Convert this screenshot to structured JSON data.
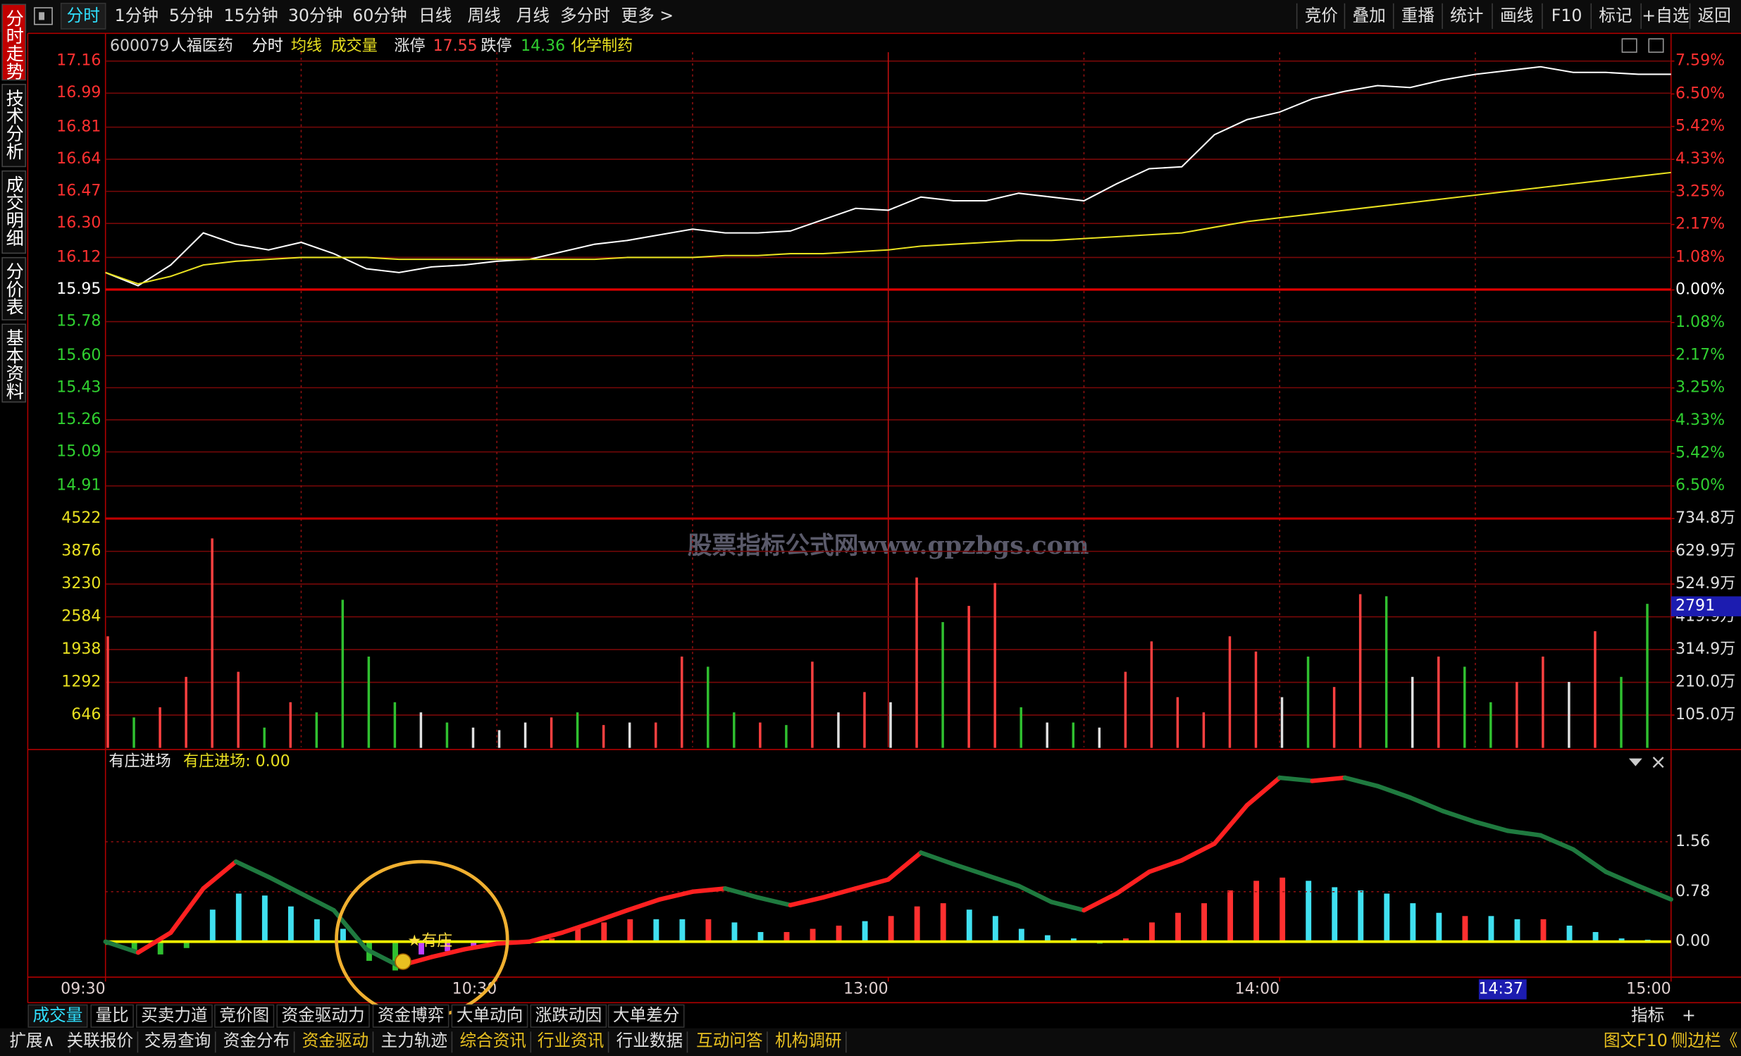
{
  "toolbar": {
    "left": [
      "分时",
      "1分钟",
      "5分钟",
      "15分钟",
      "30分钟",
      "60分钟",
      "日线",
      "周线",
      "月线",
      "多分时",
      "更多 >"
    ],
    "active": 0,
    "right": [
      "竞价",
      "叠加",
      "重播",
      "统计",
      "画线",
      "F10",
      "标记",
      "+自选",
      "返回"
    ]
  },
  "side_tabs": {
    "items": [
      "分时走势",
      "技术分析",
      "成交明细",
      "分价表",
      "基本资料"
    ],
    "active": 0
  },
  "quote_header": {
    "code": "600079",
    "name": "人福医药",
    "limit_up_label": "涨停",
    "limit_up": "17.55",
    "limit_down_label": "跌停",
    "limit_down": "14.36",
    "sector": "化学制药"
  },
  "watermark": "股票指标公式网www.gpzbgs.com",
  "chart_data": [
    {
      "type": "line",
      "x": [
        0,
        5,
        10,
        15,
        20,
        25,
        30,
        35,
        40,
        45,
        50,
        55,
        60,
        65,
        70,
        75,
        80,
        85,
        90,
        95,
        100,
        105,
        110,
        115,
        120,
        125,
        130,
        135,
        140,
        145,
        150,
        155,
        160,
        165,
        170,
        175,
        180,
        185,
        190,
        195,
        200,
        205,
        210,
        215,
        220,
        225,
        230,
        235,
        240
      ],
      "series": [
        {
          "name": "分时",
          "color": "#ffffff",
          "values": [
            16.04,
            15.97,
            16.08,
            16.25,
            16.19,
            16.16,
            16.2,
            16.14,
            16.06,
            16.04,
            16.07,
            16.08,
            16.1,
            16.11,
            16.15,
            16.19,
            16.21,
            16.24,
            16.27,
            16.25,
            16.25,
            16.26,
            16.32,
            16.38,
            16.37,
            16.44,
            16.42,
            16.42,
            16.46,
            16.44,
            16.42,
            16.51,
            16.59,
            16.6,
            16.77,
            16.85,
            16.89,
            16.96,
            17,
            17.03,
            17.02,
            17.06,
            17.09,
            17.11,
            17.13,
            17.1,
            17.1,
            17.09,
            17.09
          ]
        },
        {
          "name": "均线",
          "color": "#e8e020",
          "values": [
            16.04,
            15.98,
            16.02,
            16.08,
            16.1,
            16.11,
            16.12,
            16.12,
            16.12,
            16.11,
            16.11,
            16.11,
            16.11,
            16.11,
            16.11,
            16.11,
            16.12,
            16.12,
            16.12,
            16.13,
            16.13,
            16.14,
            16.14,
            16.15,
            16.16,
            16.18,
            16.19,
            16.2,
            16.21,
            16.21,
            16.22,
            16.23,
            16.24,
            16.25,
            16.28,
            16.31,
            16.33,
            16.35,
            16.37,
            16.39,
            16.41,
            16.43,
            16.45,
            16.47,
            16.49,
            16.51,
            16.53,
            16.55,
            16.57
          ]
        }
      ],
      "xlim": [
        0,
        240
      ],
      "xgrid": [
        30,
        60,
        90,
        150,
        180,
        210
      ],
      "xgrid_solid": [
        120
      ],
      "ylim": [
        14.91,
        17.16
      ],
      "yticks": [
        17.16,
        16.99,
        16.81,
        16.64,
        16.47,
        {
          "value": 16.3,
          "label": "16.30"
        },
        16.12,
        15.95,
        15.78,
        {
          "value": 15.6,
          "label": "15.60"
        },
        15.43,
        15.26,
        15.09,
        14.91
      ],
      "y2lim": [
        -6.5,
        7.59
      ],
      "y2ticks": [
        {
          "value": 7.59,
          "label": "7.59%"
        },
        {
          "value": 6.5,
          "label": "6.50%"
        },
        {
          "value": 5.42,
          "label": "5.42%"
        },
        {
          "value": 4.33,
          "label": "4.33%"
        },
        {
          "value": 3.25,
          "label": "3.25%"
        },
        {
          "value": 2.17,
          "label": "2.17%"
        },
        {
          "value": 1.08,
          "label": "1.08%"
        },
        {
          "value": 0,
          "label": "0.00%"
        },
        {
          "value": -1.08,
          "label": "1.08%"
        },
        {
          "value": -2.17,
          "label": "2.17%"
        },
        {
          "value": -3.25,
          "label": "3.25%"
        },
        {
          "value": -4.33,
          "label": "4.33%"
        },
        {
          "value": -5.42,
          "label": "5.42%"
        },
        {
          "value": -6.5,
          "label": "6.50%"
        }
      ]
    },
    {
      "type": "bar",
      "name": "成交量",
      "x": [
        0,
        4,
        8,
        12,
        16,
        20,
        24,
        28,
        32,
        36,
        40,
        44,
        48,
        52,
        56,
        60,
        64,
        68,
        72,
        76,
        80,
        84,
        88,
        92,
        96,
        100,
        104,
        108,
        112,
        116,
        120,
        124,
        128,
        132,
        136,
        140,
        144,
        148,
        152,
        156,
        160,
        164,
        168,
        172,
        176,
        180,
        184,
        188,
        192,
        196,
        200,
        204,
        208,
        212,
        216,
        220,
        224,
        228,
        232,
        236
      ],
      "values": [
        2200,
        600,
        800,
        1400,
        4130,
        1500,
        400,
        900,
        700,
        2920,
        1800,
        900,
        700,
        500,
        400,
        350,
        500,
        600,
        700,
        450,
        500,
        500,
        1800,
        1600,
        700,
        500,
        450,
        1700,
        700,
        1100,
        900,
        3360,
        2480,
        2800,
        3250,
        800,
        500,
        500,
        400,
        1500,
        2100,
        1000,
        700,
        2200,
        1900,
        1000,
        1800,
        1200,
        3030,
        2990,
        1400,
        1800,
        1600,
        900,
        1300,
        1800,
        1300,
        2300,
        1400,
        2840
      ],
      "bar_colors": [
        "#ff4040",
        "#30c030",
        "#ff4040",
        "#ff4040",
        "#ff4040",
        "#ff4040",
        "#30c030",
        "#ff4040",
        "#30c030",
        "#30c030",
        "#30c030",
        "#30c030",
        "#e0e0e0",
        "#30c030",
        "#e0e0e0",
        "#e0e0e0",
        "#e0e0e0",
        "#ff4040",
        "#30c030",
        "#ff4040",
        "#e0e0e0",
        "#ff4040",
        "#ff4040",
        "#30c030",
        "#30c030",
        "#ff4040",
        "#30c030",
        "#ff4040",
        "#e0e0e0",
        "#ff4040",
        "#e0e0e0",
        "#ff4040",
        "#30c030",
        "#ff4040",
        "#ff4040",
        "#30c030",
        "#e0e0e0",
        "#30c030",
        "#e0e0e0",
        "#ff4040",
        "#ff4040",
        "#ff4040",
        "#ff4040",
        "#ff4040",
        "#ff4040",
        "#e0e0e0",
        "#30c030",
        "#ff4040",
        "#ff4040",
        "#30c030",
        "#e0e0e0",
        "#ff4040",
        "#30c030",
        "#30c030",
        "#ff4040",
        "#ff4040",
        "#e0e0e0",
        "#ff4040",
        "#30c030",
        "#30c030"
      ],
      "xlim": [
        0,
        240
      ],
      "ylim": [
        0,
        4522
      ],
      "yticks": [
        4522,
        3876,
        3230,
        2584,
        1938,
        1292,
        646
      ],
      "y2lim": [
        0,
        734.8
      ],
      "y2ticks": [
        {
          "value": 734.8,
          "label": "734.8万"
        },
        {
          "value": 629.9,
          "label": "629.9万"
        },
        {
          "value": 524.9,
          "label": "524.9万"
        },
        {
          "value": 419.9,
          "label": "419.9万"
        },
        {
          "value": 314.9,
          "label": "314.9万"
        },
        {
          "value": 210,
          "label": "210.0万"
        },
        {
          "value": 105,
          "label": "105.0万"
        }
      ],
      "cursor_y": 2791
    },
    {
      "type": "combo",
      "title": "有庄进场",
      "readout": "有庄进场: 0.00",
      "annotation": "★有庄",
      "series": [
        {
          "type": "line",
          "up_color": "#ff2020",
          "down_color": "#1f7a3f",
          "x": [
            0,
            5,
            10,
            15,
            20,
            25,
            30,
            35,
            40,
            45,
            50,
            55,
            60,
            65,
            70,
            75,
            80,
            85,
            90,
            95,
            100,
            105,
            110,
            115,
            120,
            125,
            130,
            135,
            140,
            145,
            150,
            155,
            160,
            165,
            170,
            175,
            180,
            185,
            190,
            195,
            200,
            205,
            210,
            215,
            220,
            225,
            230,
            235,
            240
          ],
          "values": [
            0,
            -0.17,
            0.14,
            0.83,
            1.25,
            1.01,
            0.75,
            0.49,
            -0.12,
            -0.38,
            -0.24,
            -0.12,
            -0.03,
            0,
            0.14,
            0.31,
            0.49,
            0.66,
            0.78,
            0.83,
            0.69,
            0.57,
            0.69,
            0.83,
            0.97,
            1.39,
            1.21,
            1.04,
            0.87,
            0.62,
            0.49,
            0.75,
            1.09,
            1.27,
            1.53,
            2.13,
            2.56,
            2.51,
            2.56,
            2.43,
            2.25,
            2.04,
            1.87,
            1.73,
            1.66,
            1.44,
            1.09,
            0.87,
            0.66
          ]
        },
        {
          "type": "bar",
          "x": [
            0,
            4,
            8,
            12,
            16,
            20,
            24,
            28,
            32,
            36,
            40,
            44,
            48,
            52,
            56,
            60,
            64,
            68,
            72,
            76,
            80,
            84,
            88,
            92,
            96,
            100,
            104,
            108,
            112,
            116,
            120,
            124,
            128,
            132,
            136,
            140,
            144,
            148,
            152,
            156,
            160,
            164,
            168,
            172,
            176,
            180,
            184,
            188,
            192,
            196,
            200,
            204,
            208,
            212,
            216,
            220,
            224,
            228,
            232,
            236
          ],
          "values": [
            -0.05,
            -0.15,
            -0.2,
            -0.1,
            0.5,
            0.75,
            0.72,
            0.55,
            0.35,
            0.2,
            -0.3,
            -0.45,
            -0.2,
            -0.15,
            -0.08,
            -0.02,
            0.02,
            0.05,
            0.2,
            0.3,
            0.35,
            0.35,
            0.35,
            0.35,
            0.3,
            0.15,
            0.15,
            0.2,
            0.25,
            0.32,
            0.4,
            0.55,
            0.6,
            0.5,
            0.4,
            0.2,
            0.1,
            0.05,
            -0.03,
            0.05,
            0.3,
            0.45,
            0.6,
            0.8,
            0.95,
            1,
            0.95,
            0.85,
            0.8,
            0.75,
            0.6,
            0.45,
            0.4,
            0.4,
            0.35,
            0.35,
            0.25,
            0.15,
            0.05,
            0.03
          ],
          "colors": [
            "#30c030",
            "#30c030",
            "#30c030",
            "#30c030",
            "#40e0f0",
            "#40e0f0",
            "#40e0f0",
            "#40e0f0",
            "#40e0f0",
            "#40e0f0",
            "#30c030",
            "#30c030",
            "#c040ff",
            "#c040ff",
            "#c040ff",
            "#c040ff",
            "#ff3030",
            "#ff3030",
            "#ff3030",
            "#ff3030",
            "#ff3030",
            "#40e0f0",
            "#40e0f0",
            "#ff3030",
            "#40e0f0",
            "#40e0f0",
            "#ff3030",
            "#ff3030",
            "#ff3030",
            "#40e0f0",
            "#ff3030",
            "#ff3030",
            "#ff3030",
            "#40e0f0",
            "#40e0f0",
            "#40e0f0",
            "#40e0f0",
            "#40e0f0",
            "#30c030",
            "#ff3030",
            "#ff3030",
            "#ff3030",
            "#ff3030",
            "#ff3030",
            "#ff3030",
            "#ff3030",
            "#40e0f0",
            "#40e0f0",
            "#40e0f0",
            "#40e0f0",
            "#40e0f0",
            "#40e0f0",
            "#ff3030",
            "#40e0f0",
            "#40e0f0",
            "#ff3030",
            "#40e0f0",
            "#40e0f0",
            "#40e0f0",
            "#40e0f0"
          ]
        }
      ],
      "xlim": [
        0,
        240
      ],
      "ylim": [
        -0.52,
        2.74
      ],
      "yticks": [
        {
          "value": 0,
          "label": "0.00"
        },
        0.78,
        1.56
      ],
      "xticks": [
        {
          "value": 0,
          "label": "09:30"
        },
        {
          "value": 60,
          "label": "10:30"
        },
        {
          "value": 120,
          "label": "13:00"
        },
        {
          "value": 180,
          "label": "14:00"
        },
        {
          "value": 240,
          "label": "15:00"
        }
      ],
      "cursor_x": {
        "value": 217,
        "label": "14:37"
      }
    }
  ],
  "bottom_tabs": {
    "left": [
      "成交量",
      "量比",
      "买卖力道",
      "竞价图",
      "资金驱动力",
      "资金博弈",
      "大单动向",
      "涨跌动因",
      "大单差分"
    ],
    "active": 0,
    "right": [
      "指标",
      "+"
    ]
  },
  "status_bar": {
    "left": [
      {
        "text": "扩展∧",
        "color": "#e0e0e0"
      },
      {
        "text": "关联报价",
        "color": "#e0e0e0"
      },
      {
        "text": "交易查询",
        "color": "#e0e0e0"
      },
      {
        "text": "资金分布",
        "color": "#e0e0e0"
      },
      {
        "text": "资金驱动",
        "color": "#e8c020"
      },
      {
        "text": "主力轨迹",
        "color": "#e0e0e0"
      },
      {
        "text": "综合资讯",
        "color": "#e8c020"
      },
      {
        "text": "行业资讯",
        "color": "#e8c020"
      },
      {
        "text": "行业数据",
        "color": "#e0e0e0"
      },
      {
        "text": "互动问答",
        "color": "#e8c020"
      },
      {
        "text": "机构调研",
        "color": "#e8c020"
      }
    ],
    "right": [
      "图文F10",
      "侧边栏《"
    ]
  }
}
